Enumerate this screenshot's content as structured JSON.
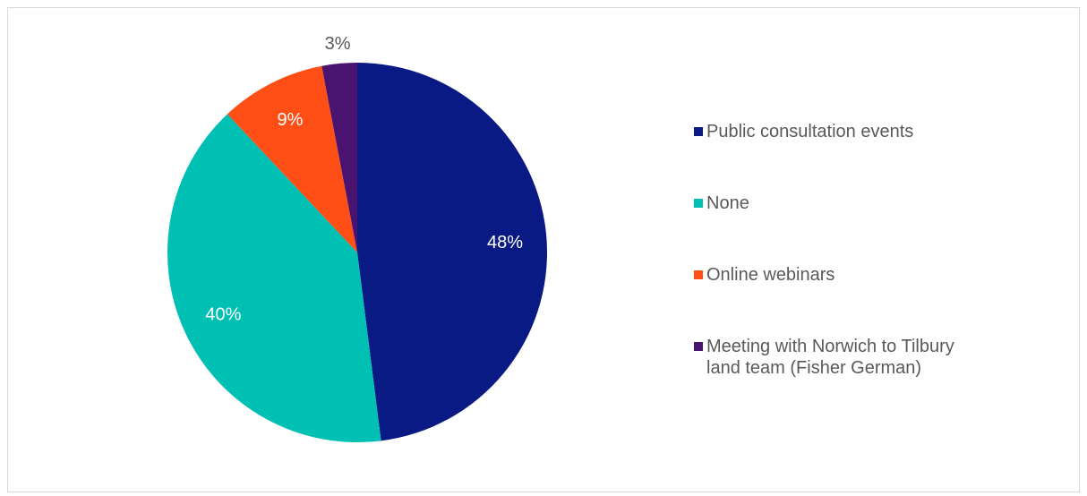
{
  "chart_data": {
    "type": "pie",
    "categories": [
      "Public consultation events",
      "None",
      "Online webinars",
      "Meeting with Norwich to Tilbury land team (Fisher German)"
    ],
    "values": [
      48,
      40,
      9,
      3
    ],
    "value_labels": [
      "48%",
      "40%",
      "9%",
      "3%"
    ],
    "colors": [
      "#0a1a85",
      "#00bfb3",
      "#ff4f17",
      "#4b1370"
    ],
    "legend": "right"
  }
}
